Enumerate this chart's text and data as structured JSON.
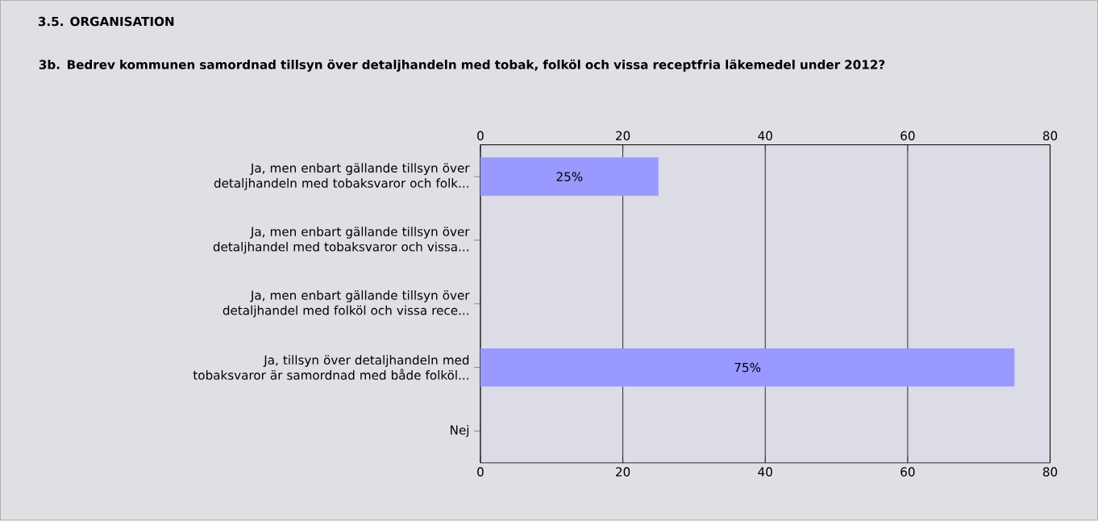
{
  "chart_data": {
    "type": "bar",
    "orientation": "horizontal",
    "title": "3.5. ORGANISATION",
    "subtitle": "3b. Bedrev kommunen samordnad tillsyn över detaljhandeln med tobak, folköl och vissa receptfria läkemedel under 2012?",
    "categories": [
      "Ja, men enbart gällande tillsyn över detaljhandeln med tobaksvaror och folk...",
      "Ja, men enbart gällande tillsyn över detaljhandel med tobaksvaror och vissa...",
      "Ja, men enbart gällande tillsyn över detaljhandel med folköl och vissa rece...",
      "Ja, tillsyn över detaljhandeln med tobaksvaror är samordnad med både folköl...",
      "Nej"
    ],
    "values": [
      25,
      0,
      0,
      75,
      0
    ],
    "value_labels": [
      "25%",
      null,
      null,
      "75%",
      null
    ],
    "color": "#9999ff",
    "xlim": [
      0,
      80
    ],
    "xticks": [
      0,
      20,
      40,
      60,
      80
    ],
    "x2lim": [
      0,
      80
    ],
    "x2ticks": [
      0,
      20,
      40,
      60,
      80
    ],
    "grid": "x"
  }
}
